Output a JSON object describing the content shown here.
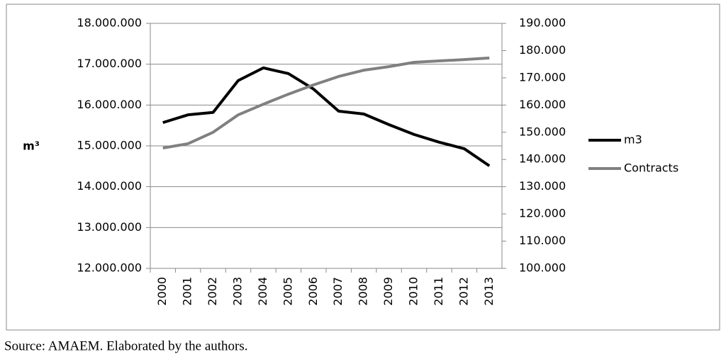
{
  "chart_data": {
    "type": "line",
    "y_label": "m³",
    "source": "Source: AMAEM. Elaborated by the authors.",
    "categories": [
      "2000",
      "2001",
      "2002",
      "2003",
      "2004",
      "2005",
      "2006",
      "2007",
      "2008",
      "2009",
      "2010",
      "2011",
      "2012",
      "2013"
    ],
    "series": [
      {
        "name": "m3",
        "color": "#000000",
        "values": [
          15570000,
          15760000,
          15820000,
          16600000,
          16910000,
          16770000,
          16390000,
          15850000,
          15780000,
          15520000,
          15280000,
          15090000,
          14930000,
          14510000
        ]
      },
      {
        "name": "Contracts",
        "color": "#808080",
        "axis": "y2",
        "values": [
          144200,
          145800,
          150000,
          156400,
          160300,
          164000,
          167400,
          170500,
          172800,
          174100,
          175700,
          176200,
          176700,
          177300
        ]
      }
    ],
    "ylim": [
      12000000,
      18000000
    ],
    "yticks": [
      {
        "value": 12000000,
        "label": "12.000.000"
      },
      {
        "value": 13000000,
        "label": "13.000.000"
      },
      {
        "value": 14000000,
        "label": "14.000.000"
      },
      {
        "value": 15000000,
        "label": "15.000.000"
      },
      {
        "value": 16000000,
        "label": "16.000.000"
      },
      {
        "value": 17000000,
        "label": "17.000.000"
      },
      {
        "value": 18000000,
        "label": "18.000.000"
      }
    ],
    "y2lim": [
      100000,
      190000
    ],
    "y2ticks": [
      {
        "value": 100000,
        "label": "100.000"
      },
      {
        "value": 110000,
        "label": "110.000"
      },
      {
        "value": 120000,
        "label": "120.000"
      },
      {
        "value": 130000,
        "label": "130.000"
      },
      {
        "value": 140000,
        "label": "140.000"
      },
      {
        "value": 150000,
        "label": "150.000"
      },
      {
        "value": 160000,
        "label": "160.000"
      },
      {
        "value": 170000,
        "label": "170.000"
      },
      {
        "value": 180000,
        "label": "180.000"
      },
      {
        "value": 190000,
        "label": "190.000"
      }
    ],
    "grid": true,
    "legend": "right"
  }
}
